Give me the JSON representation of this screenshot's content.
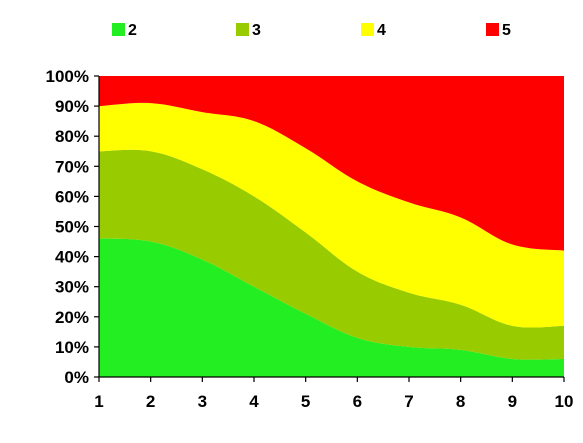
{
  "chart_data": {
    "type": "area",
    "stacking": "percent",
    "title": "",
    "xlabel": "",
    "ylabel": "",
    "x": [
      1,
      2,
      3,
      4,
      5,
      6,
      7,
      8,
      9,
      10
    ],
    "xlim": [
      1,
      10
    ],
    "ylim": [
      0,
      100
    ],
    "y_ticks": [
      "0%",
      "10%",
      "20%",
      "30%",
      "40%",
      "50%",
      "60%",
      "70%",
      "80%",
      "90%",
      "100%"
    ],
    "x_ticks": [
      "1",
      "2",
      "3",
      "4",
      "5",
      "6",
      "7",
      "8",
      "9",
      "10"
    ],
    "grid": false,
    "legend_position": "top",
    "series": [
      {
        "name": "2",
        "color": "#22EE22",
        "values": [
          46,
          45,
          39,
          30,
          21,
          13,
          10,
          9,
          6,
          6
        ]
      },
      {
        "name": "3",
        "color": "#99CC00",
        "values": [
          29,
          30,
          30,
          30,
          27,
          22,
          18,
          15,
          11,
          11
        ]
      },
      {
        "name": "4",
        "color": "#FFFF00",
        "values": [
          15,
          16,
          19,
          25,
          28,
          30,
          30,
          29,
          27,
          25
        ]
      },
      {
        "name": "5",
        "color": "#FF0000",
        "values": [
          10,
          9,
          12,
          15,
          24,
          35,
          42,
          47,
          56,
          58
        ]
      }
    ]
  }
}
